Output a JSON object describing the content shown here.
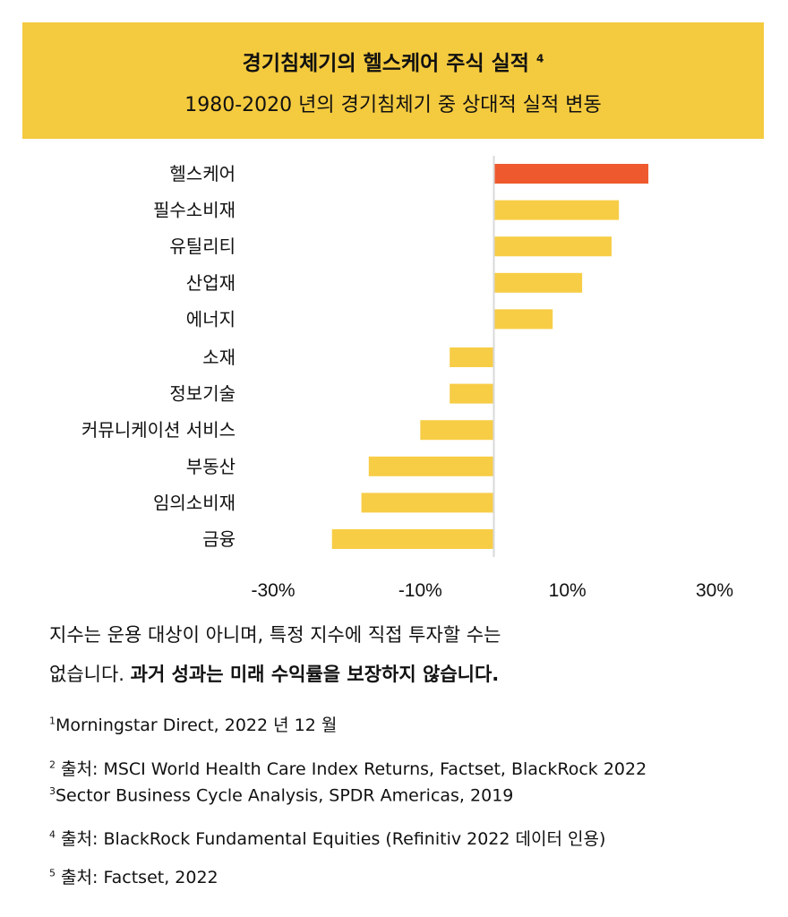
{
  "header": {
    "title": "경기침체기의 헬스케어 주식 실적",
    "title_sup": "4",
    "subtitle": "1980-2020 년의 경기침체기 중 상대적 실적 변동"
  },
  "chart_data": {
    "type": "bar",
    "orientation": "horizontal",
    "categories": [
      "헬스케어",
      "필수소비재",
      "유틸리티",
      "산업재",
      "에너지",
      "소재",
      "정보기술",
      "커뮤니케이션 서비스",
      "부동산",
      "임의소비재",
      "금융"
    ],
    "values": [
      21,
      17,
      16,
      12,
      8,
      -6,
      -6,
      -10,
      -17,
      -18,
      -22
    ],
    "highlight": "헬스케어",
    "xlim": [
      -30,
      30
    ],
    "xticks": [
      -30,
      -10,
      10,
      30
    ],
    "xtick_labels": [
      "-30%",
      "-10%",
      "10%",
      "30%"
    ],
    "colors": {
      "highlight": "#EE5A2E",
      "default": "#F7CD46",
      "axis": "#D9D9D9"
    }
  },
  "note": {
    "line1": "지수는 운용 대상이 아니며, 특정 지수에 직접 투자할 수는",
    "line2_plain": "없습니다. ",
    "line2_bold": "과거 성과는 미래 수익률을 보장하지 않습니다."
  },
  "footnotes": [
    {
      "num": "1",
      "text": "Morningstar Direct, 2022 년 12 월"
    },
    {
      "num": "2",
      "text": " 출처: MSCI World Health Care Index Returns, Factset, BlackRock 2022"
    },
    {
      "num": "3",
      "text": "Sector Business Cycle Analysis, SPDR Americas, 2019"
    },
    {
      "num": "4",
      "text": " 출처: BlackRock Fundamental Equities (Refinitiv 2022 데이터 인용)"
    },
    {
      "num": "5",
      "text": " 출처: Factset, 2022"
    }
  ]
}
